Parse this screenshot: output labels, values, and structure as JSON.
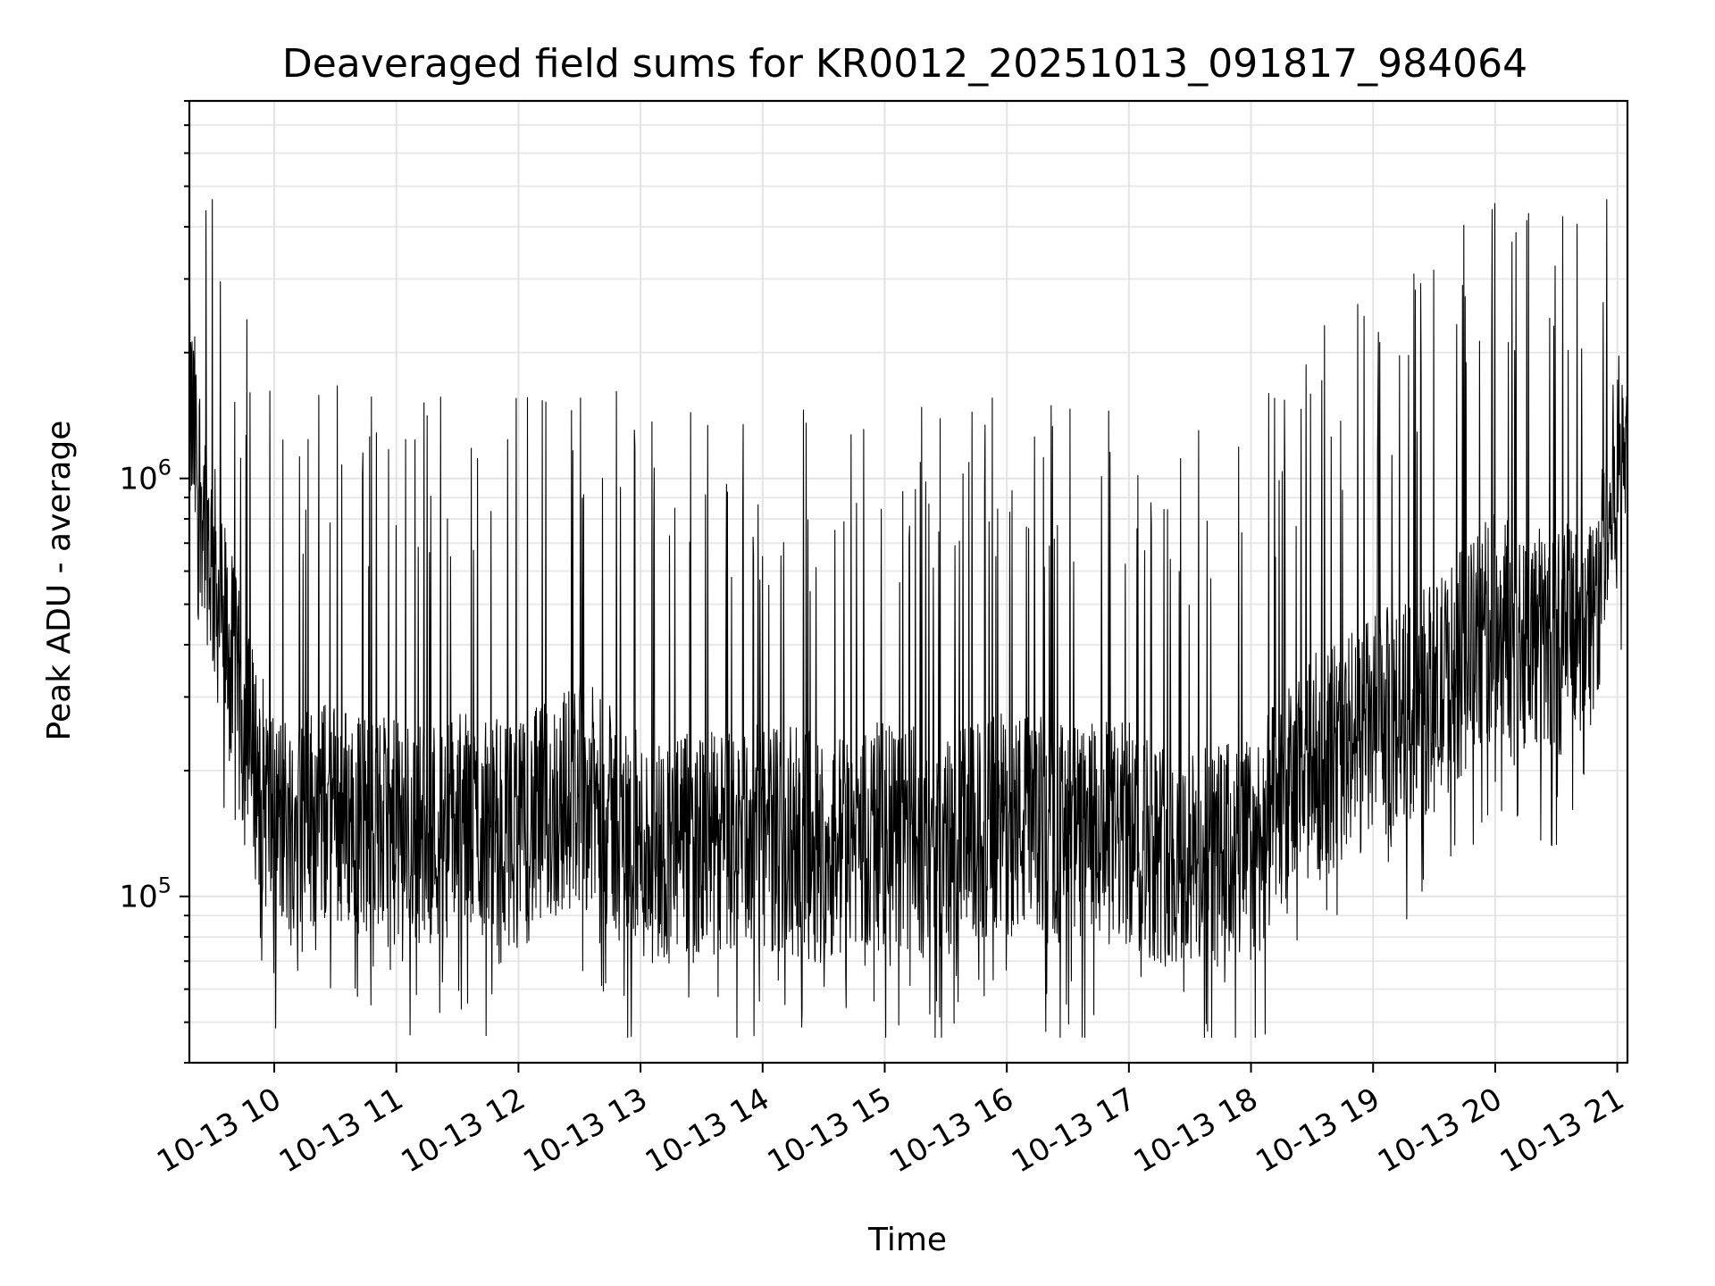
{
  "chart_data": {
    "type": "line",
    "title": "Deaveraged field sums for KR0012_20251013_091817_984064",
    "xlabel": "Time",
    "ylabel": "Peak ADU - average",
    "x_range": [
      "2025-10-13 09:18:17",
      "2025-10-13 21:05:00"
    ],
    "x_ticks": [
      "10-13 10",
      "10-13 11",
      "10-13 12",
      "10-13 13",
      "10-13 14",
      "10-13 15",
      "10-13 16",
      "10-13 17",
      "10-13 18",
      "10-13 19",
      "10-13 20",
      "10-13 21"
    ],
    "y_scale": "log",
    "ylim": [
      40000,
      8000000
    ],
    "y_ticks": [
      {
        "base": "10",
        "exp": "5",
        "value": 100000
      },
      {
        "base": "10",
        "exp": "6",
        "value": 1000000
      }
    ],
    "grid": true,
    "series": [
      {
        "color": "#000000",
        "x": [
          "2025-10-13 09:18",
          "2025-10-13 09:30",
          "2025-10-13 09:45",
          "2025-10-13 10:00",
          "2025-10-13 10:30",
          "2025-10-13 11:00",
          "2025-10-13 11:30",
          "2025-10-13 12:00",
          "2025-10-13 12:30",
          "2025-10-13 13:00",
          "2025-10-13 13:30",
          "2025-10-13 14:00",
          "2025-10-13 14:30",
          "2025-10-13 15:00",
          "2025-10-13 15:30",
          "2025-10-13 16:00",
          "2025-10-13 16:30",
          "2025-10-13 17:00",
          "2025-10-13 17:30",
          "2025-10-13 18:00",
          "2025-10-13 18:30",
          "2025-10-13 19:00",
          "2025-10-13 19:30",
          "2025-10-13 20:00",
          "2025-10-13 20:30",
          "2025-10-13 20:50",
          "2025-10-13 21:05"
        ],
        "y": [
          1500000,
          600000,
          250000,
          150000,
          160000,
          140000,
          150000,
          140000,
          180000,
          130000,
          130000,
          140000,
          130000,
          140000,
          130000,
          150000,
          140000,
          140000,
          120000,
          130000,
          200000,
          250000,
          300000,
          450000,
          400000,
          500000,
          1500000
        ]
      }
    ]
  }
}
